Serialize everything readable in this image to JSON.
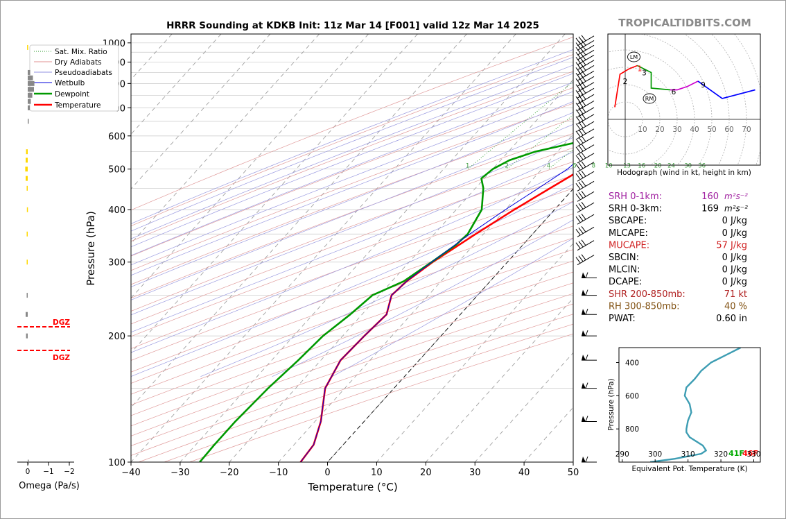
{
  "header": {
    "title": "HRRR Sounding at KDKB Init: 11z Mar 14 [F001] valid 12z Mar 14 2025",
    "watermark": "TROPICALTIDBITS.COM"
  },
  "chart_data": [
    {
      "type": "line",
      "name": "skew-t",
      "xlabel": "Temperature (°C)",
      "ylabel": "Pressure (hPa)",
      "xlim": [
        -40,
        50
      ],
      "ylim": [
        1050,
        100
      ],
      "y_scale": "log",
      "x_ticks": [
        "−40",
        "−30",
        "−20",
        "−10",
        "0",
        "10",
        "20",
        "30",
        "40",
        "50"
      ],
      "y_ticks": [
        "100",
        "200",
        "300",
        "400",
        "500",
        "600",
        "700",
        "800",
        "900",
        "1000"
      ],
      "legend": {
        "position": "top-left",
        "entries": [
          "Sat. Mix. Ratio",
          "Dry Adiabats",
          "Pseudoadiabats",
          "Wetbulb",
          "Dewpoint",
          "Temperature"
        ]
      },
      "mixing_ratio_labels": [
        "1",
        "2",
        "4",
        "6",
        "8",
        "10",
        "13",
        "16",
        "20",
        "24",
        "30",
        "36"
      ],
      "series": [
        {
          "name": "Temperature",
          "color": "#ff0000",
          "p": [
            970,
            960,
            950,
            935,
            925,
            900,
            870,
            850,
            800,
            750,
            700,
            650,
            600,
            550,
            500,
            450,
            400,
            350,
            300,
            270,
            250,
            225,
            200,
            175,
            150,
            125,
            110,
            100
          ],
          "t": [
            8.0,
            15.5,
            18.2,
            19.6,
            20.2,
            18.8,
            17.6,
            17.0,
            14.8,
            11.8,
            8.2,
            4.8,
            2.2,
            0.2,
            -1.8,
            -4.8,
            -8.2,
            -11.6,
            -15.2,
            -17.0,
            -17.5,
            -15.0,
            -15.6,
            -16.0,
            -14.0,
            -8.8,
            -6.0,
            -5.5
          ]
        },
        {
          "name": "Dewpoint",
          "color": "#009900",
          "p": [
            1000,
            975,
            950,
            925,
            900,
            870,
            850,
            800,
            775,
            750,
            700,
            650,
            600,
            550,
            525,
            500,
            475,
            450,
            400,
            350,
            330,
            300,
            270,
            250,
            225,
            200,
            175,
            150,
            125,
            110,
            100
          ],
          "t": [
            6.6,
            7.6,
            8.6,
            9.0,
            9.0,
            8.2,
            7.0,
            1.6,
            1.4,
            0.6,
            2.0,
            2.2,
            -3.2,
            -14.6,
            -18.2,
            -20.0,
            -20.6,
            -18.4,
            -14.8,
            -13.2,
            -13.6,
            -15.4,
            -17.6,
            -21.4,
            -22.4,
            -24.0,
            -24.6,
            -25.6,
            -26.2,
            -26.2,
            -26.0
          ]
        },
        {
          "name": "Wetbulb",
          "color": "#0000dd",
          "p": [
            970,
            960,
            950,
            935,
            925,
            900,
            870,
            850,
            800,
            750,
            700,
            650,
            600,
            550,
            500,
            450,
            400,
            350,
            300,
            270,
            250,
            225,
            200,
            175,
            150,
            125,
            110,
            100
          ],
          "t": [
            7.5,
            11.0,
            12.2,
            13.0,
            13.3,
            12.2,
            11.0,
            10.2,
            8.2,
            6.8,
            5.0,
            2.3,
            -1.2,
            -3.8,
            -4.8,
            -7.2,
            -10.0,
            -12.8,
            -15.4,
            -17.0,
            -17.5,
            -15.0,
            -15.6,
            -16.0,
            -14.0,
            -8.8,
            -6.0,
            -5.5
          ]
        }
      ],
      "surface_labels": {
        "dewpoint": "41F",
        "temperature": "46F"
      },
      "dgz_labels": [
        "DGZ",
        "DGZ"
      ]
    },
    {
      "type": "line",
      "name": "hodograph",
      "caption": "Hodograph (wind in kt, height in km)",
      "ring_labels": [
        "10",
        "20",
        "30",
        "40",
        "50",
        "60",
        "70"
      ],
      "point_labels": [
        "1",
        "2",
        "3",
        "6",
        "9"
      ],
      "markers": [
        "LM",
        "RM"
      ],
      "segments": [
        {
          "color": "#ff0000",
          "u": [
            -6,
            -3,
            2,
            7
          ],
          "v": [
            7,
            26,
            29,
            31
          ]
        },
        {
          "color": "#009900",
          "u": [
            7,
            15,
            15,
            26
          ],
          "v": [
            31,
            27,
            18,
            17
          ]
        },
        {
          "color": "#cc00cc",
          "u": [
            26,
            30,
            36,
            42
          ],
          "v": [
            17,
            17,
            19,
            22
          ]
        },
        {
          "color": "#0000ff",
          "u": [
            42,
            56,
            75
          ],
          "v": [
            22,
            12,
            17
          ]
        }
      ]
    },
    {
      "type": "line",
      "name": "theta-e profile",
      "xlabel": "Equivalent Pot. Temperature (K)",
      "ylabel": "Pressure (hPa)",
      "xlim": [
        289,
        332
      ],
      "ylim": [
        1000,
        310
      ],
      "x_ticks": [
        "290",
        "300",
        "310",
        "320",
        "330"
      ],
      "y_ticks": [
        "400",
        "600",
        "800"
      ],
      "series": [
        {
          "name": "theta-e",
          "color": "#3d9db3",
          "p": [
            1000,
            980,
            950,
            930,
            900,
            850,
            820,
            800,
            750,
            700,
            650,
            600,
            550,
            500,
            450,
            400,
            350,
            310
          ],
          "x": [
            298.5,
            306,
            314,
            315.5,
            314.5,
            310.5,
            309.5,
            309.5,
            310,
            311,
            310.5,
            309,
            309.5,
            312,
            314,
            317,
            322,
            326
          ]
        }
      ]
    },
    {
      "type": "bar",
      "name": "omega",
      "xlabel": "Omega (Pa/s)",
      "x_ticks": [
        "0",
        "−1",
        "−2"
      ],
      "xlim": [
        0.3,
        -2.0
      ]
    }
  ],
  "params": [
    {
      "label": "SRH 0-1km:",
      "value": "160",
      "unit": "m²s⁻²",
      "color": "#a020a0"
    },
    {
      "label": "SRH 0-3km:",
      "value": "169",
      "unit": "m²s⁻²",
      "color": "#000000"
    },
    {
      "label": "SBCAPE:",
      "value": "0 J/kg",
      "unit": "",
      "color": "#000000"
    },
    {
      "label": "MLCAPE:",
      "value": "0 J/kg",
      "unit": "",
      "color": "#000000"
    },
    {
      "label": "MUCAPE:",
      "value": "57 J/kg",
      "unit": "",
      "color": "#d02020"
    },
    {
      "label": "SBCIN:",
      "value": "0 J/kg",
      "unit": "",
      "color": "#000000"
    },
    {
      "label": "MLCIN:",
      "value": "0 J/kg",
      "unit": "",
      "color": "#000000"
    },
    {
      "label": "DCAPE:",
      "value": "0 J/kg",
      "unit": "",
      "color": "#000000"
    },
    {
      "label": "SHR 200-850mb:",
      "value": "71 kt",
      "unit": "",
      "color": "#b02020"
    },
    {
      "label": "RH 300-850mb:",
      "value": "40 %",
      "unit": "",
      "color": "#805010"
    },
    {
      "label": "PWAT:",
      "value": "0.60 in",
      "unit": "",
      "color": "#000000"
    }
  ]
}
